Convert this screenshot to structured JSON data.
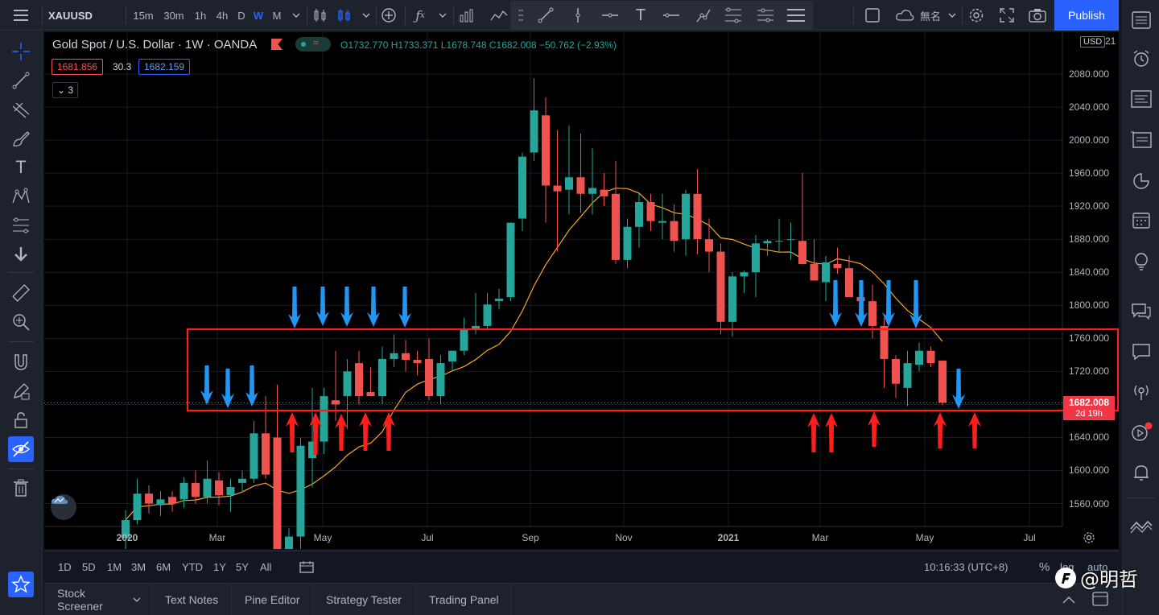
{
  "toolbar": {
    "symbol": "XAUUSD",
    "intervals": [
      "15m",
      "30m",
      "1h",
      "4h",
      "D",
      "W",
      "M"
    ],
    "active_interval": "W",
    "layout_name": "無名",
    "publish_label": "Publish"
  },
  "legend": {
    "title": "Gold Spot / U.S. Dollar · 1W · OANDA",
    "open": "O1732.770",
    "high": "H1733.371",
    "low": "L1678.748",
    "close": "C1682.008",
    "change": "−50.762 (−2.93%)",
    "bid": "1681.856",
    "spread": "30.3",
    "ask": "1682.159",
    "indicators_count": "3"
  },
  "price_scale": {
    "currency": "USD",
    "ticks": [
      "2080.000",
      "2040.000",
      "2000.000",
      "1960.000",
      "1920.000",
      "1880.000",
      "1840.000",
      "1800.000",
      "1760.000",
      "1720.000",
      "1640.000",
      "1600.000",
      "1560.000"
    ],
    "top_partial": "21",
    "last_price": "1682.008",
    "countdown": "2d 19h"
  },
  "time_scale": {
    "labels": [
      "2020",
      "Mar",
      "May",
      "Jul",
      "Sep",
      "Nov",
      "2021",
      "Mar",
      "May",
      "Jul"
    ]
  },
  "range_bar": {
    "ranges": [
      "1D",
      "5D",
      "1M",
      "3M",
      "6M",
      "YTD",
      "1Y",
      "5Y",
      "All"
    ],
    "time": "10:16:33 (UTC+8)",
    "percent": "%",
    "log": "log",
    "auto": "auto"
  },
  "bottom_tabs": [
    "Stock Screener",
    "Text Notes",
    "Pine Editor",
    "Strategy Tester",
    "Trading Panel"
  ],
  "watermark": "@明哲",
  "colors": {
    "up": "#26a69a",
    "down": "#ef5350",
    "ma": "#f5a623",
    "arrow_blue": "#2196f3",
    "arrow_red": "#ff1e1e",
    "box": "#ff1e1e",
    "accent": "#2962ff"
  },
  "chart_data": {
    "type": "candlestick",
    "symbol": "XAUUSD",
    "timeframe": "1W",
    "ylim": [
      1520,
      2100
    ],
    "series": [
      {
        "name": "candles",
        "ohlc": [
          [
            1518,
            1552,
            1495,
            1540
          ],
          [
            1540,
            1590,
            1535,
            1572
          ],
          [
            1572,
            1582,
            1548,
            1560
          ],
          [
            1558,
            1575,
            1545,
            1565
          ],
          [
            1568,
            1575,
            1550,
            1560
          ],
          [
            1565,
            1592,
            1555,
            1585
          ],
          [
            1585,
            1600,
            1560,
            1568
          ],
          [
            1568,
            1612,
            1560,
            1590
          ],
          [
            1588,
            1598,
            1558,
            1570
          ],
          [
            1570,
            1590,
            1550,
            1580
          ],
          [
            1585,
            1600,
            1575,
            1590
          ],
          [
            1590,
            1660,
            1585,
            1645
          ],
          [
            1645,
            1690,
            1590,
            1595
          ],
          [
            1640,
            1704,
            1450,
            1480
          ],
          [
            1470,
            1530,
            1451,
            1520
          ],
          [
            1520,
            1640,
            1460,
            1630
          ],
          [
            1615,
            1700,
            1580,
            1635
          ],
          [
            1635,
            1700,
            1620,
            1690
          ],
          [
            1685,
            1745,
            1660,
            1680
          ],
          [
            1690,
            1735,
            1650,
            1720
          ],
          [
            1730,
            1745,
            1680,
            1690
          ],
          [
            1695,
            1725,
            1690,
            1690
          ],
          [
            1690,
            1750,
            1680,
            1735
          ],
          [
            1735,
            1765,
            1725,
            1742
          ],
          [
            1742,
            1758,
            1720,
            1734
          ],
          [
            1734,
            1745,
            1715,
            1730
          ],
          [
            1735,
            1760,
            1685,
            1690
          ],
          [
            1690,
            1740,
            1680,
            1730
          ],
          [
            1732,
            1745,
            1720,
            1745
          ],
          [
            1745,
            1785,
            1740,
            1772
          ],
          [
            1770,
            1815,
            1765,
            1775
          ],
          [
            1775,
            1815,
            1770,
            1801
          ],
          [
            1805,
            1820,
            1795,
            1808
          ],
          [
            1810,
            1900,
            1805,
            1900
          ],
          [
            1905,
            1985,
            1890,
            1980
          ],
          [
            1985,
            2075,
            1975,
            2036
          ],
          [
            2030,
            2052,
            1900,
            1945
          ],
          [
            1945,
            2012,
            1865,
            1938
          ],
          [
            1940,
            2018,
            1910,
            1955
          ],
          [
            1955,
            2008,
            1912,
            1935
          ],
          [
            1935,
            1990,
            1910,
            1942
          ],
          [
            1940,
            1960,
            1920,
            1932
          ],
          [
            1935,
            1975,
            1850,
            1855
          ],
          [
            1855,
            1905,
            1845,
            1895
          ],
          [
            1895,
            1935,
            1870,
            1925
          ],
          [
            1925,
            1935,
            1890,
            1902
          ],
          [
            1900,
            1935,
            1880,
            1902
          ],
          [
            1902,
            1922,
            1865,
            1878
          ],
          [
            1880,
            1940,
            1860,
            1935
          ],
          [
            1935,
            1965,
            1862,
            1880
          ],
          [
            1880,
            1905,
            1840,
            1865
          ],
          [
            1865,
            1875,
            1765,
            1780
          ],
          [
            1780,
            1840,
            1762,
            1835
          ],
          [
            1835,
            1842,
            1815,
            1840
          ],
          [
            1840,
            1885,
            1810,
            1875
          ],
          [
            1875,
            1880,
            1860,
            1878
          ],
          [
            1878,
            1905,
            1865,
            1878
          ],
          [
            1880,
            1900,
            1855,
            1880
          ],
          [
            1878,
            1960,
            1850,
            1850
          ],
          [
            1850,
            1880,
            1830,
            1830
          ],
          [
            1828,
            1860,
            1805,
            1852
          ],
          [
            1850,
            1870,
            1838,
            1845
          ],
          [
            1845,
            1860,
            1810,
            1810
          ],
          [
            1810,
            1820,
            1795,
            1805
          ],
          [
            1805,
            1825,
            1760,
            1775
          ],
          [
            1775,
            1785,
            1700,
            1735
          ],
          [
            1735,
            1740,
            1688,
            1705
          ],
          [
            1700,
            1745,
            1678,
            1730
          ],
          [
            1728,
            1755,
            1720,
            1745
          ],
          [
            1745,
            1750,
            1725,
            1730
          ],
          [
            1733,
            1733,
            1679,
            1682
          ]
        ]
      },
      {
        "name": "MA"
      }
    ]
  }
}
